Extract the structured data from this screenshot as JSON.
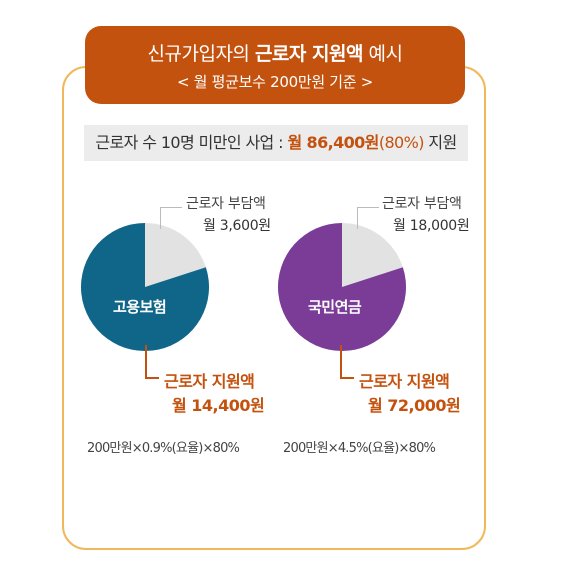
{
  "header": {
    "title_prefix": "신규가입자의 ",
    "title_bold": "근로자 지원액",
    "title_suffix": " 예시",
    "subtitle": "< 월 평균보수 200만원 기준 >"
  },
  "banner": {
    "prefix": "근로자 수 10명 미만인 사업 : ",
    "amount": "월 86,400원",
    "pct": "(80%)",
    "suffix": " 지원"
  },
  "charts": [
    {
      "name": "고용보험",
      "burden_caption": "근로자 부담액",
      "burden_amount": "월 3,600원",
      "support_caption": "근로자 지원액",
      "support_amount": "월 14,400원",
      "formula": "200만원×0.9%(요율)×80%",
      "color": "#0f6688"
    },
    {
      "name": "국민연금",
      "burden_caption": "근로자 부담액",
      "burden_amount": "월 18,000원",
      "support_caption": "근로자 지원액",
      "support_amount": "월 72,000원",
      "formula": "200만원×4.5%(요율)×80%",
      "color": "#7a3c97"
    }
  ],
  "chart_data": [
    {
      "type": "pie",
      "title": "고용보험",
      "slices": [
        {
          "label": "근로자 부담액",
          "value": 3600,
          "color": "#e2e2e2"
        },
        {
          "label": "근로자 지원액",
          "value": 14400,
          "color": "#0f6688"
        }
      ]
    },
    {
      "type": "pie",
      "title": "국민연금",
      "slices": [
        {
          "label": "근로자 부담액",
          "value": 18000,
          "color": "#e2e2e2"
        },
        {
          "label": "근로자 지원액",
          "value": 72000,
          "color": "#7a3c97"
        }
      ]
    }
  ]
}
